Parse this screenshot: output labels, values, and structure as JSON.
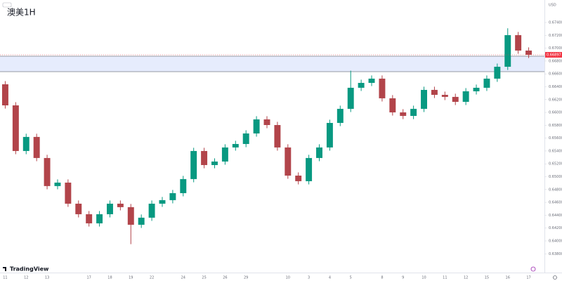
{
  "chart_data": {
    "type": "candlestick",
    "title": "澳美1H",
    "currency": "USD",
    "brand": "TradingView",
    "categories": [
      "11",
      null,
      "12",
      null,
      "13",
      null,
      null,
      null,
      "17",
      null,
      "18",
      null,
      "19",
      null,
      "22",
      null,
      null,
      "24",
      null,
      "25",
      null,
      "26",
      null,
      "29",
      null,
      null,
      null,
      "10",
      null,
      "3",
      null,
      "4",
      null,
      "5",
      null,
      null,
      "8",
      null,
      "9",
      null,
      "10",
      null,
      "11",
      null,
      "12",
      null,
      "15",
      null,
      "16",
      null,
      "17"
    ],
    "open": [
      0.66438,
      0.6611,
      0.654,
      0.65619,
      0.65291,
      0.64854,
      0.64908,
      0.6458,
      0.64416,
      0.64274,
      0.64416,
      0.6458,
      0.64526,
      0.64252,
      0.64362,
      0.6458,
      0.64635,
      0.64744,
      0.64963,
      0.654,
      0.65181,
      0.65236,
      0.65455,
      0.65509,
      0.65673,
      0.65892,
      0.65804,
      0.65455,
      0.65017,
      0.6493,
      0.65291,
      0.65455,
      0.65837,
      0.66056,
      0.66384,
      0.6646,
      0.66526,
      0.6622,
      0.66001,
      0.65946,
      0.66056,
      0.66351,
      0.66274,
      0.66242,
      0.66165,
      0.66329,
      0.66384,
      0.66526,
      0.66711,
      0.67203,
      0.66963
    ],
    "high": [
      0.66488,
      0.6616,
      0.65669,
      0.65669,
      0.65341,
      0.64958,
      0.64958,
      0.6463,
      0.64466,
      0.64466,
      0.6463,
      0.6463,
      0.64576,
      0.64412,
      0.6463,
      0.64685,
      0.64794,
      0.65013,
      0.6545,
      0.6545,
      0.65286,
      0.65505,
      0.65559,
      0.65723,
      0.65942,
      0.65942,
      0.65854,
      0.65505,
      0.65067,
      0.65341,
      0.65505,
      0.65887,
      0.66106,
      0.6665,
      0.6651,
      0.66576,
      0.66576,
      0.6627,
      0.66051,
      0.66106,
      0.66401,
      0.66401,
      0.66324,
      0.66292,
      0.66379,
      0.66434,
      0.66576,
      0.66761,
      0.6731,
      0.67253,
      0.67013
    ],
    "low": [
      0.6606,
      0.6535,
      0.6535,
      0.65241,
      0.64804,
      0.64804,
      0.6453,
      0.64366,
      0.64224,
      0.64224,
      0.64366,
      0.64476,
      0.6395,
      0.64202,
      0.64312,
      0.6453,
      0.64585,
      0.64694,
      0.64913,
      0.65131,
      0.65131,
      0.65186,
      0.65405,
      0.65459,
      0.65623,
      0.65754,
      0.65405,
      0.64967,
      0.6488,
      0.6488,
      0.65241,
      0.65405,
      0.65787,
      0.66006,
      0.66334,
      0.6641,
      0.6617,
      0.65951,
      0.65896,
      0.65896,
      0.66006,
      0.66224,
      0.66192,
      0.66115,
      0.66115,
      0.66279,
      0.66334,
      0.66476,
      0.66661,
      0.66913,
      0.66847
    ],
    "close": [
      0.6611,
      0.654,
      0.65619,
      0.65291,
      0.64854,
      0.64908,
      0.6458,
      0.64416,
      0.64274,
      0.64416,
      0.6458,
      0.64526,
      0.64252,
      0.64362,
      0.6458,
      0.64635,
      0.64744,
      0.64963,
      0.654,
      0.65181,
      0.65236,
      0.65455,
      0.65509,
      0.65673,
      0.65892,
      0.65804,
      0.65455,
      0.65017,
      0.6493,
      0.65291,
      0.65455,
      0.65837,
      0.66056,
      0.66384,
      0.6646,
      0.66526,
      0.6622,
      0.66001,
      0.65946,
      0.66056,
      0.66351,
      0.66274,
      0.66242,
      0.66165,
      0.66329,
      0.66384,
      0.66526,
      0.66711,
      0.67203,
      0.66963,
      0.66897
    ],
    "up_color": "#089981",
    "down_color": "#b2444a",
    "ylim": [
      0.6365,
      0.6775
    ],
    "yticks": [
      {
        "value": 0.638,
        "label": "0.63800"
      },
      {
        "value": 0.64,
        "label": "0.64000"
      },
      {
        "value": 0.642,
        "label": "0.64200"
      },
      {
        "value": 0.644,
        "label": "0.64400"
      },
      {
        "value": 0.646,
        "label": "0.64600"
      },
      {
        "value": 0.648,
        "label": "0.64800"
      },
      {
        "value": 0.65,
        "label": "0.65000"
      },
      {
        "value": 0.652,
        "label": "0.65200"
      },
      {
        "value": 0.654,
        "label": "0.65400"
      },
      {
        "value": 0.656,
        "label": "0.65600"
      },
      {
        "value": 0.658,
        "label": "0.65800"
      },
      {
        "value": 0.66,
        "label": "0.66000"
      },
      {
        "value": 0.662,
        "label": "0.66200"
      },
      {
        "value": 0.664,
        "label": "0.66400"
      },
      {
        "value": 0.666,
        "label": "0.66600"
      },
      {
        "value": 0.668,
        "label": "0.66800"
      },
      {
        "value": 0.67,
        "label": "0.67000"
      },
      {
        "value": 0.672,
        "label": "0.67200"
      },
      {
        "value": 0.674,
        "label": "0.67400"
      }
    ],
    "zone": [
      0.66635,
      0.66875
    ],
    "zone_color": "#e6ecfd",
    "last_price_label": "0.66897",
    "last_price_color": "#f23645"
  }
}
